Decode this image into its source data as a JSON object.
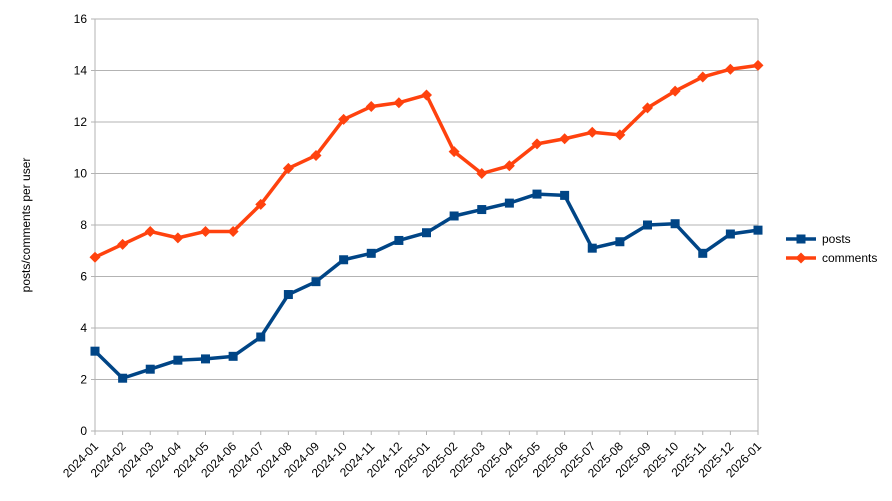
{
  "chart_data": {
    "type": "line",
    "title": "",
    "xlabel": "",
    "ylabel": "posts/comments per user",
    "categories": [
      "2024-01",
      "2024-02",
      "2024-03",
      "2024-04",
      "2024-05",
      "2024-06",
      "2024-07",
      "2024-08",
      "2024-09",
      "2024-10",
      "2024-11",
      "2024-12",
      "2025-01",
      "2025-02",
      "2025-03",
      "2025-04",
      "2025-05",
      "2025-06",
      "2025-07",
      "2025-08",
      "2025-09",
      "2025-10",
      "2025-11",
      "2025-12",
      "2026-01"
    ],
    "series": [
      {
        "name": "posts",
        "color": "#004586",
        "marker": "square",
        "values": [
          3.1,
          2.05,
          2.4,
          2.75,
          2.8,
          2.9,
          3.65,
          5.3,
          5.8,
          6.65,
          6.9,
          7.4,
          7.7,
          8.35,
          8.6,
          8.85,
          9.2,
          9.15,
          7.1,
          7.35,
          8.0,
          8.05,
          6.9,
          7.65,
          7.8
        ]
      },
      {
        "name": "comments",
        "color": "#ff420e",
        "marker": "diamond",
        "values": [
          6.75,
          7.25,
          7.75,
          7.5,
          7.75,
          7.75,
          8.8,
          10.2,
          10.7,
          12.1,
          12.6,
          12.75,
          13.05,
          10.85,
          10.0,
          10.3,
          11.15,
          11.35,
          11.6,
          11.5,
          12.55,
          13.2,
          13.75,
          14.05,
          14.2
        ]
      }
    ],
    "ylim": [
      0,
      16
    ],
    "ytick_step": 2,
    "yticks": [
      0,
      2,
      4,
      6,
      8,
      10,
      12,
      14,
      16
    ],
    "grid": "horizontal",
    "legend_position": "right-middle",
    "legend": [
      "posts",
      "comments"
    ],
    "x_label_rotation_deg": -45
  },
  "style": {
    "background": "#ffffff",
    "grid_color": "#b3b3b3",
    "axis_color": "#b3b3b3",
    "text_color": "#000000"
  }
}
